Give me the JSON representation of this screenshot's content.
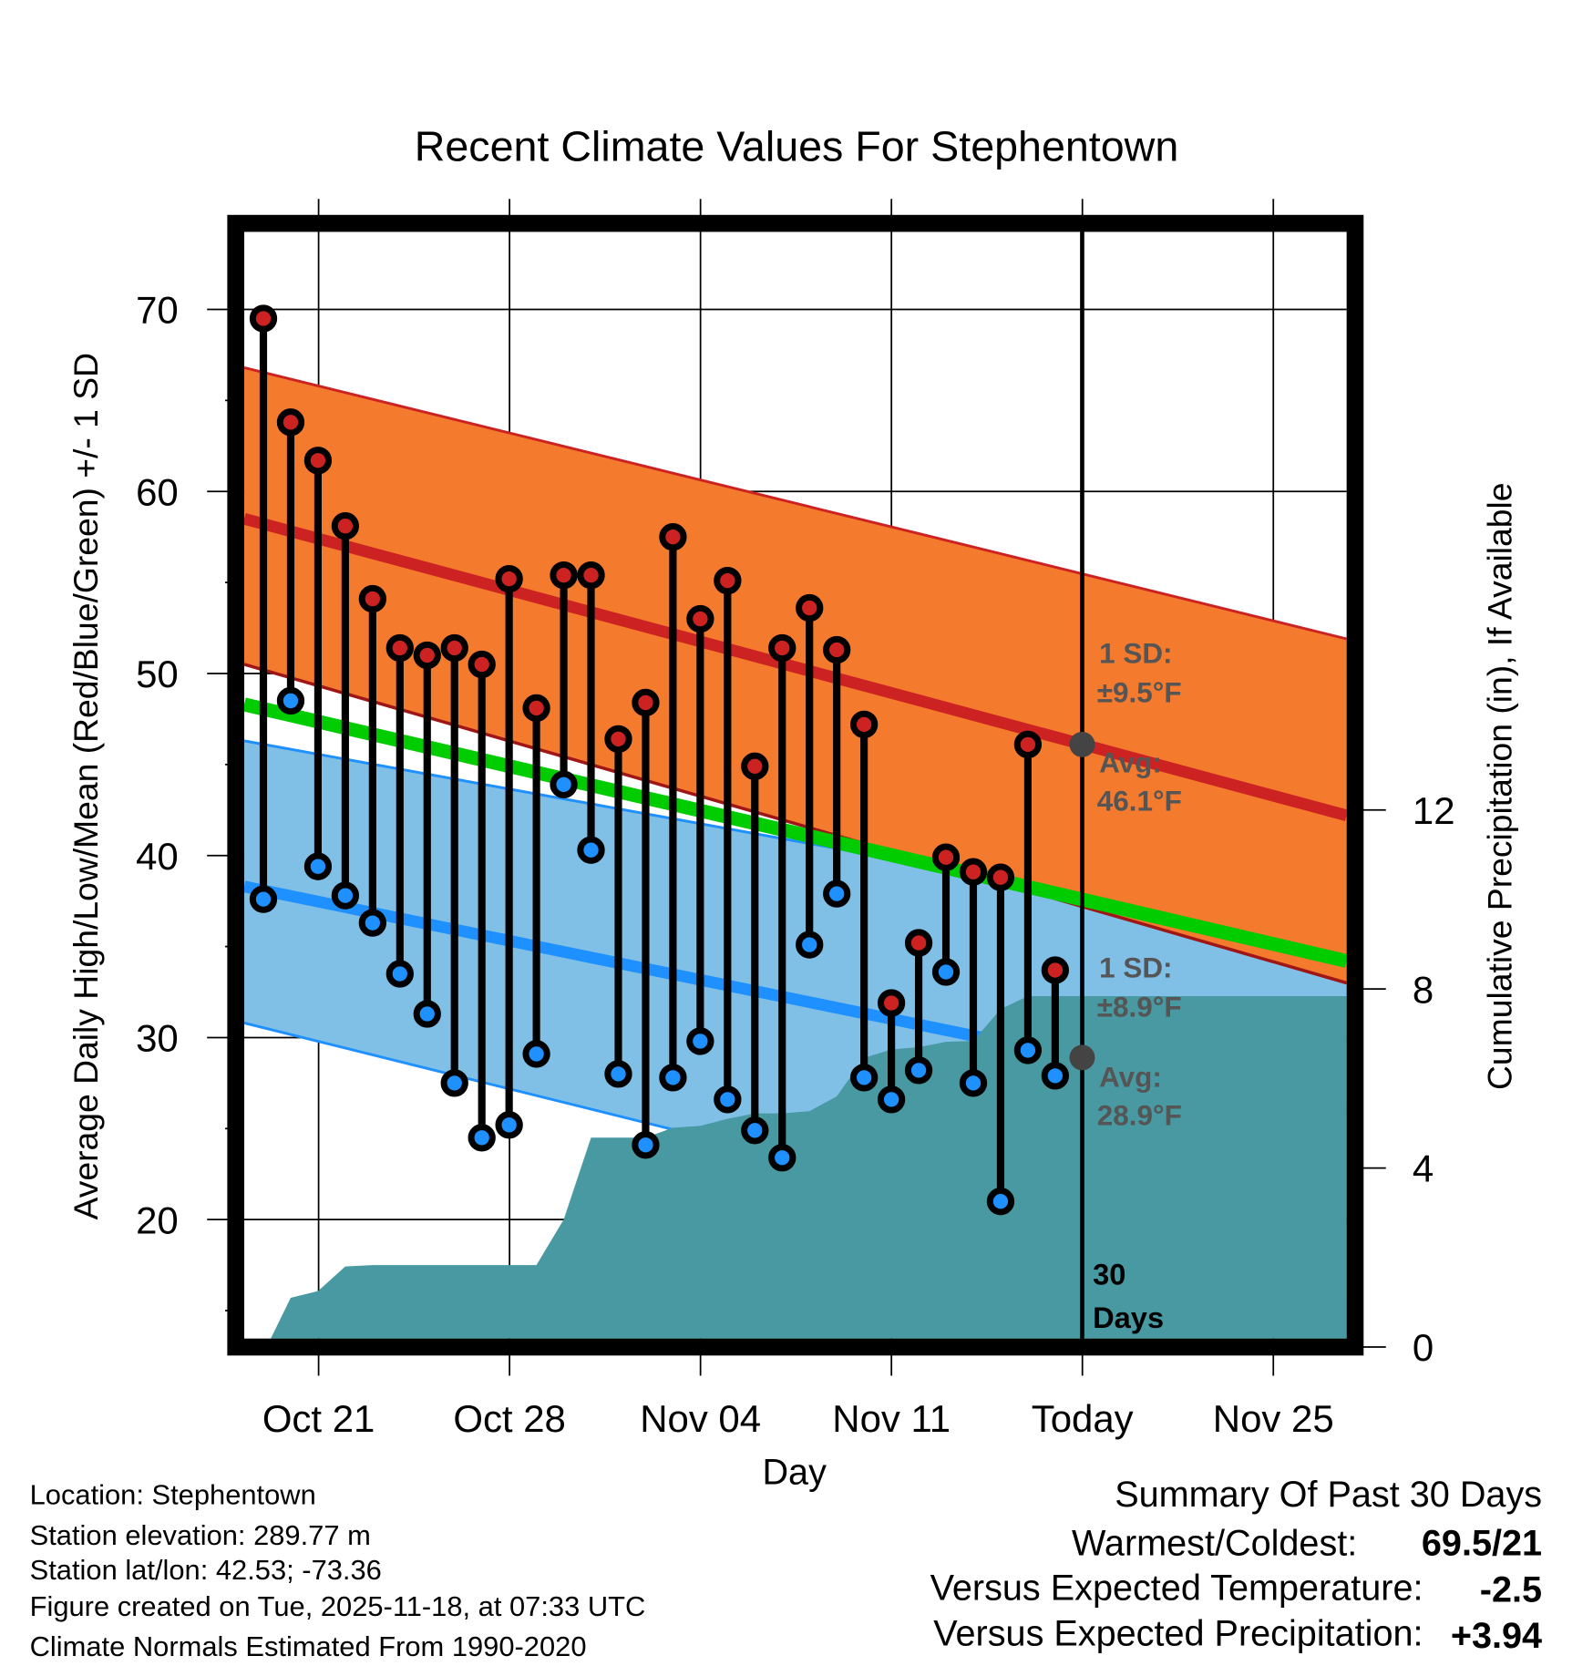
{
  "chart_data": {
    "type": "line",
    "title": "Recent Climate Values For Stephentown",
    "xlabel": "Day",
    "ylabel": "Average Daily High/Low/Mean (Red/Blue/Green) +/- 1 SD",
    "ylabel_right": "Cumulative Precipitation (in), If Available",
    "ylim": [
      13.5,
      74.3
    ],
    "ylim_right": [
      0,
      24.7
    ],
    "yticks": [
      "20",
      "30",
      "40",
      "50",
      "60",
      "70"
    ],
    "yticks_right": [
      "0",
      "4",
      "8",
      "12"
    ],
    "xticks": [
      "Oct 21",
      "Oct 28",
      "Nov 04",
      "Nov 11",
      "Today",
      "Nov 25"
    ],
    "grid": true,
    "dates": [
      "Oct 19",
      "Oct 20",
      "Oct 21",
      "Oct 22",
      "Oct 23",
      "Oct 24",
      "Oct 25",
      "Oct 26",
      "Oct 27",
      "Oct 28",
      "Oct 29",
      "Oct 30",
      "Oct 31",
      "Nov 01",
      "Nov 02",
      "Nov 03",
      "Nov 04",
      "Nov 05",
      "Nov 06",
      "Nov 07",
      "Nov 08",
      "Nov 09",
      "Nov 10",
      "Nov 11",
      "Nov 12",
      "Nov 13",
      "Nov 14",
      "Nov 15",
      "Nov 16",
      "Nov 17"
    ],
    "series": [
      {
        "name": "Daily High",
        "color": "#cc2222",
        "values": [
          69.5,
          63.8,
          61.7,
          58.1,
          54.1,
          51.4,
          51.0,
          51.4,
          50.5,
          55.2,
          48.1,
          55.4,
          55.4,
          46.4,
          48.4,
          57.5,
          53.0,
          55.1,
          44.9,
          51.4,
          53.6,
          51.3,
          47.2,
          31.9,
          35.2,
          39.9,
          39.1,
          38.8,
          46.1,
          33.7
        ]
      },
      {
        "name": "Daily Low",
        "color": "#1e90ff",
        "values": [
          37.6,
          48.5,
          39.4,
          37.8,
          36.3,
          33.5,
          31.3,
          27.5,
          24.5,
          25.2,
          29.1,
          43.9,
          40.3,
          28.0,
          24.1,
          27.8,
          29.8,
          26.6,
          24.9,
          23.4,
          35.1,
          37.9,
          27.8,
          26.6,
          28.2,
          33.6,
          27.5,
          21.0,
          29.3,
          27.9
        ]
      },
      {
        "name": "Cumulative Precipitation (in)",
        "color": "#4899a2",
        "values": [
          0.0,
          1.1,
          1.25,
          1.8,
          1.83,
          1.83,
          1.83,
          1.83,
          1.83,
          1.83,
          1.83,
          2.85,
          4.68,
          4.68,
          4.68,
          4.9,
          4.94,
          5.1,
          5.22,
          5.22,
          5.27,
          5.6,
          6.46,
          6.65,
          6.7,
          6.82,
          6.84,
          7.55,
          7.84,
          7.84
        ]
      }
    ],
    "normals": {
      "high_mean": [
        58.5,
        42.2
      ],
      "high_plus_1sd": [
        66.8,
        51.9
      ],
      "high_minus_1sd": [
        50.5,
        33.0
      ],
      "low_mean": [
        38.3,
        25.9
      ],
      "low_plus_1sd": [
        46.3,
        35.3
      ],
      "low_minus_1sd": [
        30.8,
        15.75
      ],
      "daily_mean": [
        48.3,
        34.2
      ]
    },
    "colors": {
      "high_band": "#f47a2e",
      "low_band": "#80c0e6",
      "mean": "#00cc00",
      "precip": "#4899a2"
    },
    "annotations": {
      "high_sd_1": "1 SD:",
      "high_sd_2": "±9.5°F",
      "high_avg_1": "Avg:",
      "high_avg_2": "46.1°F",
      "low_sd_1": "1 SD:",
      "low_sd_2": "±8.9°F",
      "low_avg_1": "Avg:",
      "low_avg_2": "28.9°F",
      "days_1": "30",
      "days_2": "Days"
    },
    "today_high_avg": 46.1,
    "today_low_avg": 28.9
  },
  "footer": {
    "location": "Location: Stephentown",
    "elevation": "Station elevation: 289.77 m",
    "latlon": "Station lat/lon: 42.53; -73.36",
    "created": "Figure created on Tue, 2025-11-18, at 07:33 UTC",
    "normals": "Climate Normals Estimated From 1990-2020"
  },
  "summary": {
    "title": "Summary Of Past 30 Days",
    "warmest_label": "Warmest/Coldest:",
    "warmest_value": "69.5/21",
    "temp_label": "Versus Expected Temperature:",
    "temp_value": "-2.5",
    "temp_color": "#1e90ff",
    "precip_label": "Versus Expected Precipitation:",
    "precip_value": "+3.94",
    "precip_color": "#11bb11"
  }
}
